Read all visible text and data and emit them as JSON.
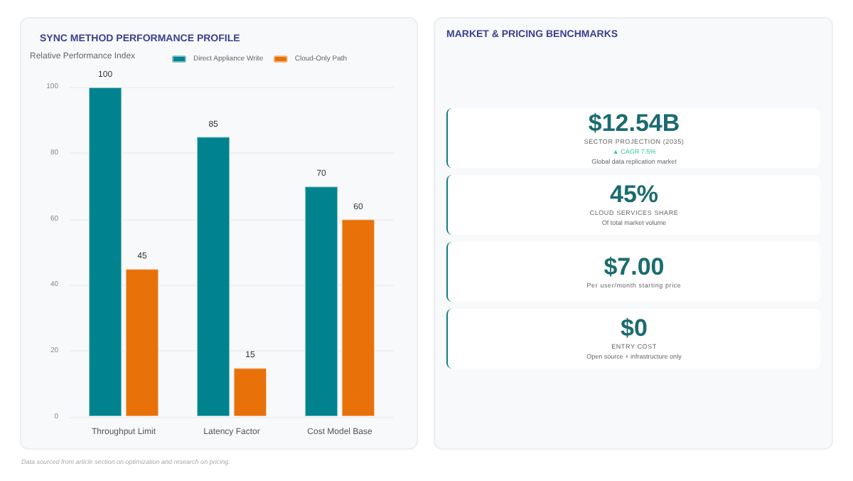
{
  "chart_data": [
    {
      "type": "bar",
      "title": "SYNC METHOD PERFORMANCE PROFILE",
      "ylabel": "Relative Performance Index",
      "categories": [
        "Throughput Limit",
        "Latency Factor",
        "Cost Model Base"
      ],
      "series": [
        {
          "name": "Direct Appliance Write",
          "color": "#00838f",
          "values": [
            100,
            85,
            70
          ]
        },
        {
          "name": "Cloud-Only Path",
          "color": "#e8710a",
          "values": [
            45,
            15,
            60
          ]
        }
      ],
      "ylim": [
        0,
        100
      ],
      "yticks": [
        0,
        20,
        40,
        60,
        80,
        100
      ],
      "grid": "y",
      "legend": "top",
      "data_labels": true,
      "annotations": [
        "Data sourced from article section on optimization and research on pricing."
      ]
    },
    {
      "type": "other",
      "title": "MARKET & PRICING BENCHMARKS",
      "annotations": [
        [
          "$12.54B",
          "SECTOR PROJECTION (2035)",
          "▲ CAGR 7.5%",
          "Global data replication market"
        ],
        [
          "45%",
          "CLOUD SERVICES SHARE",
          "Of total market volume"
        ],
        [
          "$7.00",
          "Per user/month starting price"
        ],
        [
          "$0",
          "ENTRY COST",
          "Open source + infrastructure only"
        ]
      ]
    }
  ]
}
